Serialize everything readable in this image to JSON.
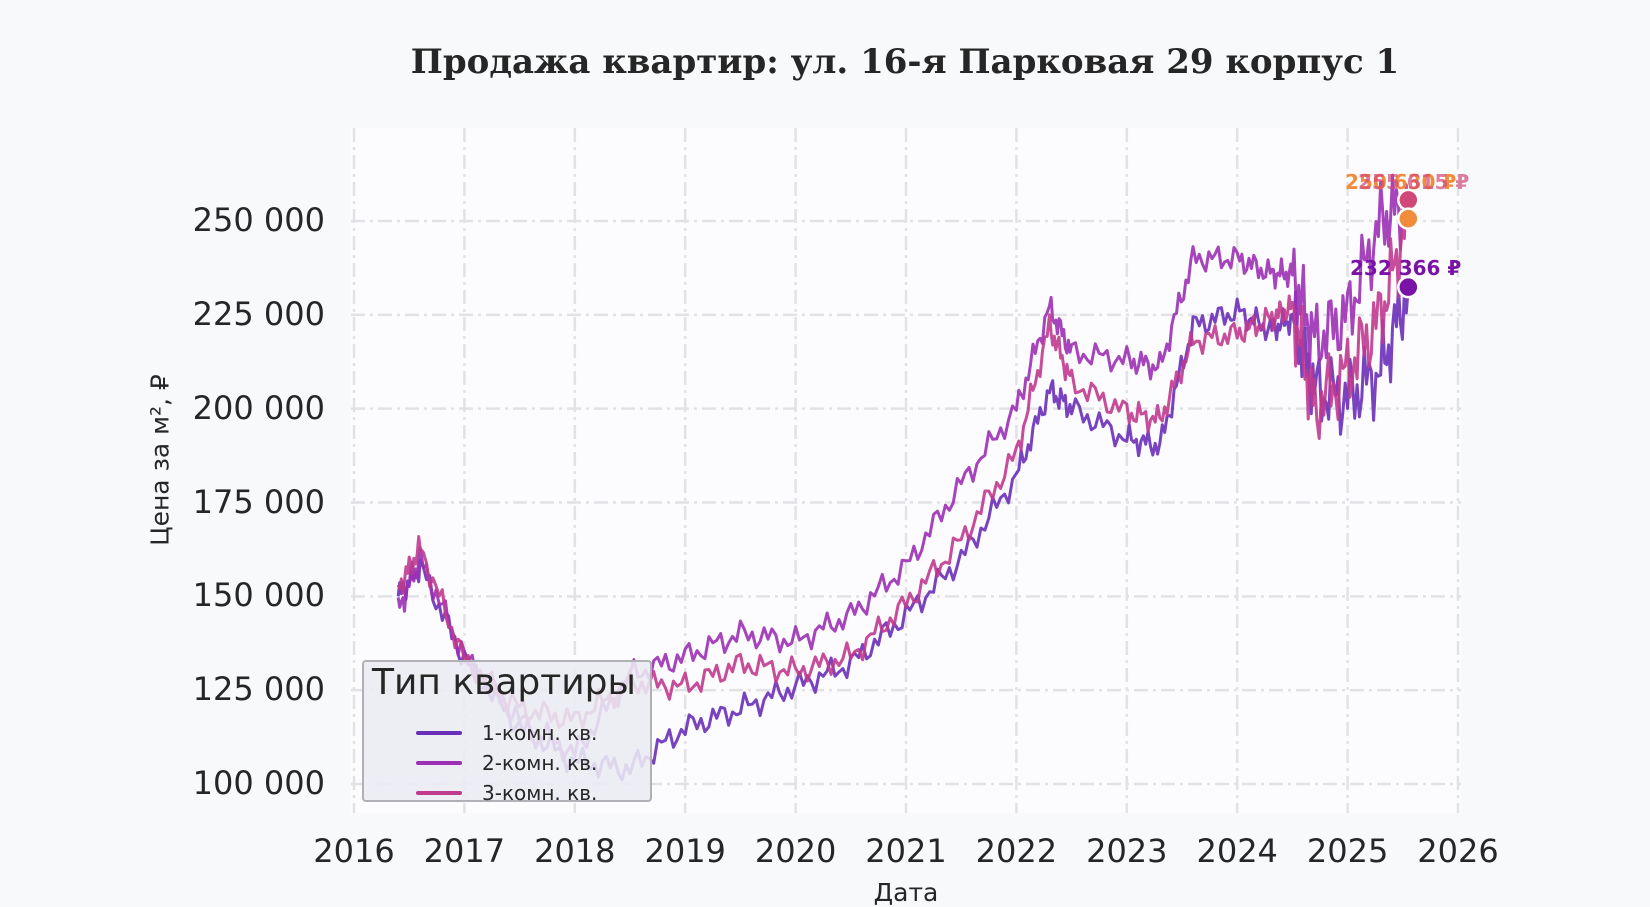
{
  "title": "Продажа квартир: ул. 16-я Парковая 29 корпус 1",
  "y_axis_title": "Цена за м², ₽",
  "x_axis_title": "Дата",
  "y_ticks": [
    "100 000",
    "125 000",
    "150 000",
    "175 000",
    "200 000",
    "225 000",
    "250 000"
  ],
  "x_ticks": [
    "2016",
    "2017",
    "2018",
    "2019",
    "2020",
    "2021",
    "2022",
    "2023",
    "2024",
    "2025",
    "2026"
  ],
  "legend": {
    "title": "Тип квартиры",
    "items": [
      {
        "label": "1-комн. кв.",
        "color": "#6a2fb8"
      },
      {
        "label": "2-комн. кв.",
        "color": "#9b30b4"
      },
      {
        "label": "3-комн. кв.",
        "color": "#c03a8e"
      }
    ]
  },
  "annotations": [
    {
      "label": "250 630 ₽",
      "color": "#f08c3c"
    },
    {
      "label": "255 615 ₽",
      "color": "#d0487a"
    },
    {
      "label": "232 366 ₽",
      "color": "#7a12a8"
    }
  ],
  "chart_data": {
    "type": "line",
    "title": "Продажа квартир: ул. 16-я Парковая 29 корпус 1",
    "xlabel": "Дата",
    "ylabel": "Цена за м², ₽",
    "xlim": [
      2016,
      2026
    ],
    "ylim": [
      93000,
      268000
    ],
    "grid": true,
    "legend_position": "lower left",
    "x": [
      2016.4,
      2016.6,
      2017.0,
      2017.5,
      2018.0,
      2018.5,
      2019.0,
      2019.5,
      2020.0,
      2020.5,
      2021.0,
      2021.5,
      2022.0,
      2022.3,
      2022.5,
      2023.0,
      2023.3,
      2023.6,
      2024.0,
      2024.3,
      2024.5,
      2024.7,
      2025.0,
      2025.3,
      2025.55
    ],
    "series": [
      {
        "name": "1-комн. кв.",
        "color": "#6a2fb8",
        "values": [
          150000,
          158000,
          133000,
          115000,
          106000,
          104000,
          115000,
          120000,
          126000,
          132000,
          145000,
          160000,
          182000,
          205000,
          200000,
          192000,
          190000,
          222000,
          226000,
          221000,
          224000,
          205000,
          203000,
          210000,
          232366
        ]
      },
      {
        "name": "2-комн. кв.",
        "color": "#9b30b4",
        "values": [
          146000,
          160000,
          134000,
          117000,
          108000,
          129000,
          134000,
          140000,
          138000,
          145000,
          158000,
          180000,
          200000,
          227000,
          215000,
          213000,
          211000,
          240000,
          240000,
          236000,
          236000,
          218000,
          225000,
          250000,
          255615
        ]
      },
      {
        "name": "3-комн. кв.",
        "color": "#c03a8e",
        "values": [
          152000,
          163000,
          133000,
          120000,
          117000,
          127000,
          126000,
          132000,
          130000,
          134000,
          148000,
          165000,
          188000,
          222000,
          207000,
          199000,
          197000,
          218000,
          220000,
          224000,
          227000,
          200000,
          210000,
          225000,
          250630
        ]
      }
    ],
    "end_markers": [
      {
        "series": "2-комн. кв.",
        "value": 255615,
        "color": "#d0487a"
      },
      {
        "series": "3-комн. кв.",
        "value": 250630,
        "color": "#f08c3c"
      },
      {
        "series": "1-комн. кв.",
        "value": 232366,
        "color": "#7a12a8"
      }
    ]
  }
}
